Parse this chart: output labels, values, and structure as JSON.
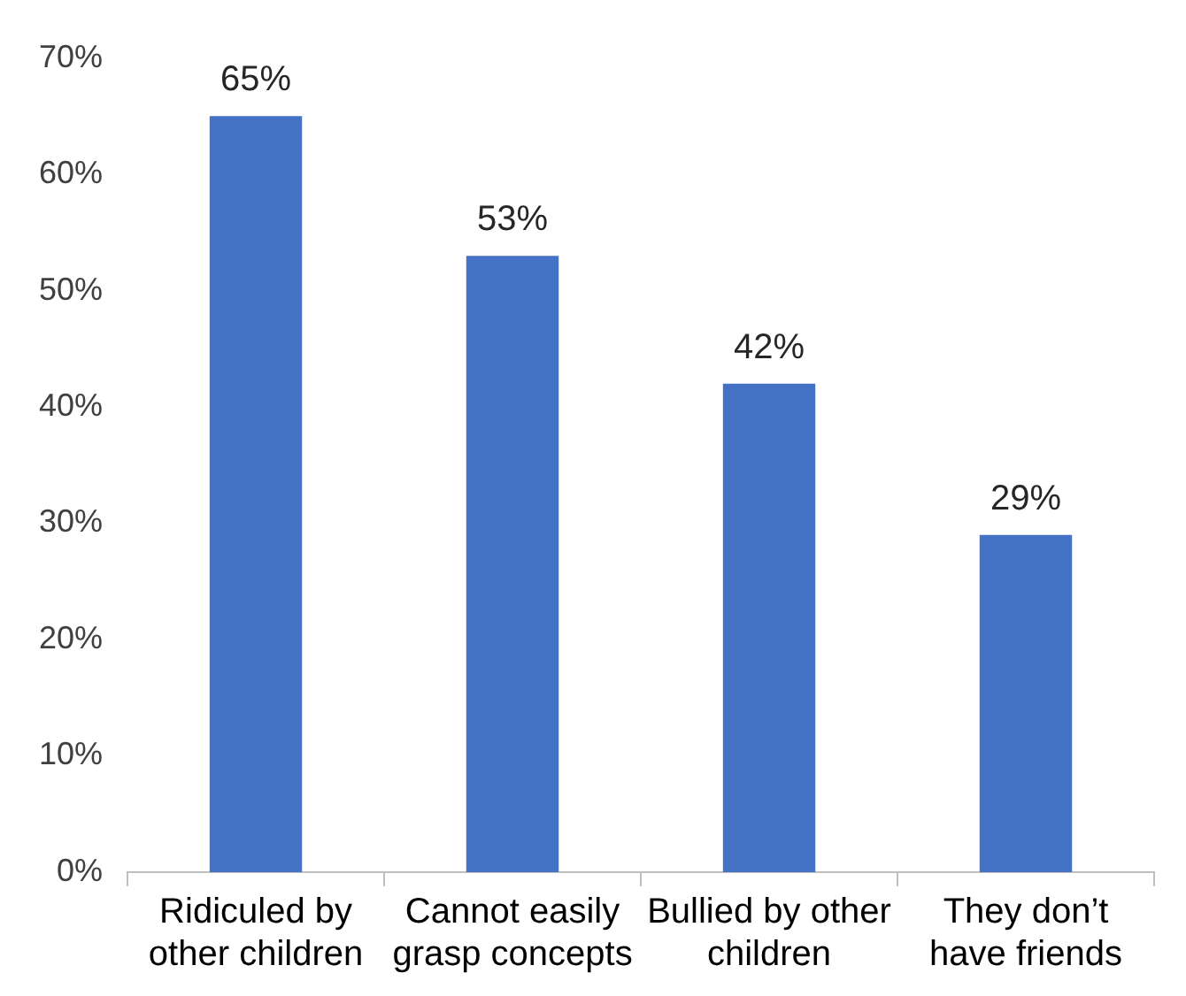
{
  "chart_data": {
    "type": "bar",
    "categories": [
      "Ridiculed by other children",
      "Cannot easily grasp concepts",
      "Bullied by other children",
      "They don’t have friends"
    ],
    "values": [
      65,
      53,
      42,
      29
    ],
    "value_labels": [
      "65%",
      "53%",
      "42%",
      "29%"
    ],
    "color": "#4472c4",
    "ylim": [
      0,
      70
    ],
    "yticks": [
      {
        "value": 0,
        "label": "0%"
      },
      {
        "value": 10,
        "label": "10%"
      },
      {
        "value": 20,
        "label": "20%"
      },
      {
        "value": 30,
        "label": "30%"
      },
      {
        "value": 40,
        "label": "40%"
      },
      {
        "value": 50,
        "label": "50%"
      },
      {
        "value": 60,
        "label": "60%"
      },
      {
        "value": 70,
        "label": "70%"
      }
    ],
    "grid": false,
    "legend": false
  }
}
